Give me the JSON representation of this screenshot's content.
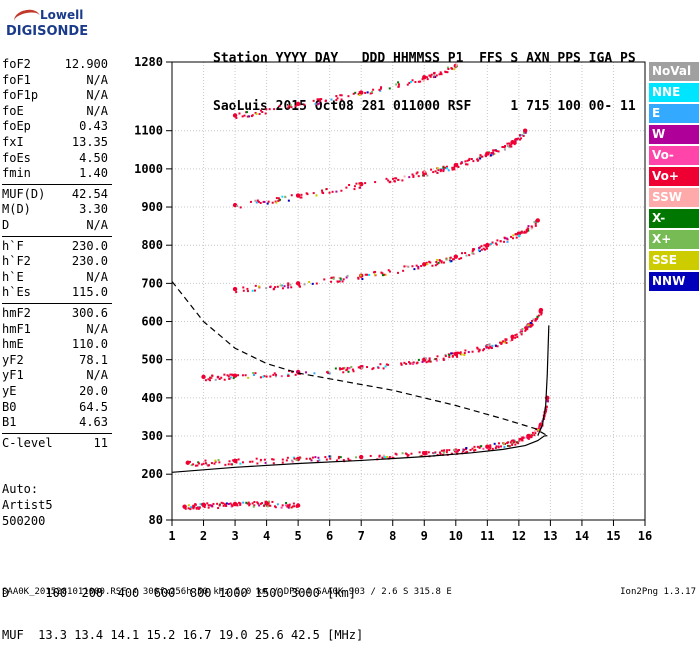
{
  "logo": {
    "line1": "Lowell",
    "line2": "DIGISONDE"
  },
  "header": {
    "row1": "Station YYYY DAY   DDD HHMMSS P1  FFS S AXN PPS IGA PS",
    "row2": "SaoLuis 2015 Oct08 281 011000 RSF     1 715 100 00- 11"
  },
  "params": [
    {
      "k": "foF2",
      "v": "12.900"
    },
    {
      "k": "foF1",
      "v": "N/A"
    },
    {
      "k": "foF1p",
      "v": "N/A"
    },
    {
      "k": "foE",
      "v": "N/A"
    },
    {
      "k": "foEp",
      "v": "0.43"
    },
    {
      "k": "fxI",
      "v": "13.35"
    },
    {
      "k": "foEs",
      "v": "4.50"
    },
    {
      "k": "fmin",
      "v": "1.40"
    },
    {
      "k": "MUF(D)",
      "v": "42.54"
    },
    {
      "k": "M(D)",
      "v": "3.30"
    },
    {
      "k": "D",
      "v": "N/A"
    },
    {
      "k": "h`F",
      "v": "230.0"
    },
    {
      "k": "h`F2",
      "v": "230.0"
    },
    {
      "k": "h`E",
      "v": "N/A"
    },
    {
      "k": "h`Es",
      "v": "115.0"
    },
    {
      "k": "hmF2",
      "v": "300.6"
    },
    {
      "k": "hmF1",
      "v": "N/A"
    },
    {
      "k": "hmE",
      "v": "110.0"
    },
    {
      "k": "yF2",
      "v": "78.1"
    },
    {
      "k": "yF1",
      "v": "N/A"
    },
    {
      "k": "yE",
      "v": "20.0"
    },
    {
      "k": "B0",
      "v": "64.5"
    },
    {
      "k": "B1",
      "v": "4.63"
    },
    {
      "k": "C-level",
      "v": "11"
    }
  ],
  "auto": {
    "line1": "Auto:",
    "line2": "Artist5",
    "line3": "500200"
  },
  "legend": [
    {
      "label": "NoVal",
      "color": "#a0a0a0"
    },
    {
      "label": "NNE",
      "color": "#00e5ff"
    },
    {
      "label": "E",
      "color": "#33aaff"
    },
    {
      "label": "W",
      "color": "#b0009a"
    },
    {
      "label": "Vo-",
      "color": "#ff44aa"
    },
    {
      "label": "Vo+",
      "color": "#ee0033"
    },
    {
      "label": "SSW",
      "color": "#ffaaaa"
    },
    {
      "label": "X-",
      "color": "#007700"
    },
    {
      "label": "X+",
      "color": "#77bb55"
    },
    {
      "label": "SSE",
      "color": "#cccc00"
    },
    {
      "label": "NNW",
      "color": "#0000bb"
    }
  ],
  "footer": {
    "row1": "D     100  200  400  600  800 1000 1500 3000 [km]",
    "row2": "MUF  13.3 13.4 14.1 15.2 16.7 19.0 25.6 42.5 [MHz]"
  },
  "bottom_text": "SAA0K_2015281011000.RSF / 300fx256h 50 kHz 5.0 km / DPS-4 SAA0K 903 / 2.6 S 315.8 E",
  "version": "Ion2Png 1.3.17",
  "chart_data": {
    "type": "scatter",
    "xlim": [
      1,
      16
    ],
    "ylim": [
      80,
      1280
    ],
    "xticks": [
      1,
      2,
      3,
      4,
      5,
      6,
      7,
      8,
      9,
      10,
      11,
      12,
      13,
      14,
      15,
      16
    ],
    "yticks": [
      80,
      200,
      300,
      400,
      500,
      600,
      700,
      800,
      900,
      1000,
      1100,
      1280
    ],
    "grid": true,
    "traces": [
      {
        "name": "Es",
        "color": "#ee0033",
        "x": [
          1.4,
          2.0,
          3.0,
          4.0,
          5.0
        ],
        "y": [
          115,
          120,
          122,
          124,
          118
        ]
      },
      {
        "name": "F2",
        "color": "#ee0033",
        "x": [
          1.5,
          3,
          5,
          7,
          9,
          10,
          11,
          11.8,
          12.3,
          12.7,
          12.9
        ],
        "y": [
          230,
          235,
          240,
          245,
          255,
          262,
          272,
          285,
          300,
          330,
          400
        ]
      },
      {
        "name": "F2-2hop",
        "color": "#ee0033",
        "x": [
          2,
          3,
          5,
          7,
          9,
          10,
          11,
          11.8,
          12.3,
          12.7
        ],
        "y": [
          455,
          458,
          468,
          480,
          500,
          515,
          535,
          560,
          590,
          630
        ]
      },
      {
        "name": "F2-3hop",
        "color": "#ee0033",
        "x": [
          3,
          5,
          7,
          9,
          10,
          11,
          12,
          12.6
        ],
        "y": [
          685,
          700,
          720,
          750,
          770,
          800,
          830,
          865
        ]
      },
      {
        "name": "F2-4hop",
        "color": "#ee0033",
        "x": [
          3,
          5,
          7,
          9,
          10,
          11,
          11.8,
          12.2
        ],
        "y": [
          905,
          930,
          960,
          990,
          1010,
          1040,
          1070,
          1100
        ]
      },
      {
        "name": "F2-5hop",
        "color": "#ee0033",
        "x": [
          3,
          5,
          7,
          9,
          10
        ],
        "y": [
          1140,
          1170,
          1200,
          1240,
          1270
        ]
      }
    ],
    "profile": {
      "x": [
        1,
        3,
        5,
        7,
        9,
        10.5,
        11.5,
        12.2,
        12.6,
        12.8,
        12.9
      ],
      "y": [
        205,
        218,
        228,
        236,
        246,
        256,
        265,
        275,
        288,
        300,
        301
      ]
    },
    "profile_upper": {
      "x": [
        12.6,
        12.75,
        12.85,
        12.9,
        12.95
      ],
      "y": [
        301,
        330,
        380,
        460,
        590
      ]
    },
    "profile_dash": {
      "x": [
        1,
        2,
        3,
        4,
        5,
        6,
        8,
        10,
        11.5,
        12.5,
        12.9
      ],
      "y": [
        705,
        600,
        530,
        490,
        465,
        450,
        420,
        380,
        345,
        320,
        301
      ]
    }
  }
}
